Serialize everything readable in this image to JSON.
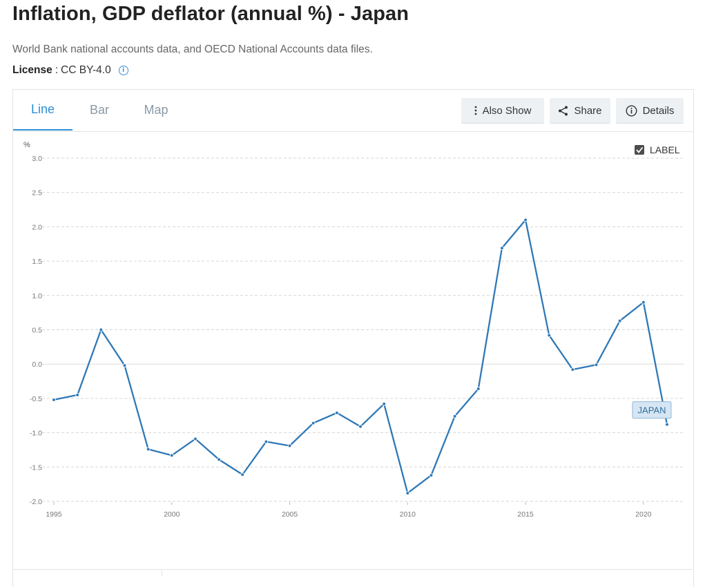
{
  "page": {
    "title": "Inflation, GDP deflator (annual %) - Japan",
    "source": "World Bank national accounts data, and OECD National Accounts data files.",
    "license_label": "License",
    "license_sep": ":",
    "license_value": "CC BY-4.0"
  },
  "tabs": [
    {
      "label": "Line",
      "active": true
    },
    {
      "label": "Bar",
      "active": false
    },
    {
      "label": "Map",
      "active": false
    }
  ],
  "toolbar": {
    "also_show": "Also Show",
    "share": "Share",
    "details": "Details"
  },
  "label_toggle": {
    "text": "LABEL",
    "checked": true
  },
  "colors": {
    "line": "#2f78b6",
    "accent": "#2b8fd6",
    "series_label_bg": "#d6e6f3"
  },
  "chart_data": {
    "type": "line",
    "title": "",
    "xlabel": "",
    "ylabel": "%",
    "ylim": [
      -2.0,
      3.0
    ],
    "yticks": [
      "3.0",
      "2.5",
      "2.0",
      "1.5",
      "1.0",
      "0.5",
      "0.0",
      "-0.5",
      "-1.0",
      "-1.5",
      "-2.0"
    ],
    "xticks": [
      "1995",
      "2000",
      "2005",
      "2010",
      "2015",
      "2020"
    ],
    "grid": true,
    "x": [
      1995,
      1996,
      1997,
      1998,
      1999,
      2000,
      2001,
      2002,
      2003,
      2004,
      2005,
      2006,
      2007,
      2008,
      2009,
      2010,
      2011,
      2012,
      2013,
      2014,
      2015,
      2016,
      2017,
      2018,
      2019,
      2020,
      2021
    ],
    "series": [
      {
        "name": "JAPAN",
        "values": [
          -0.52,
          -0.45,
          0.5,
          -0.02,
          -1.24,
          -1.33,
          -1.09,
          -1.39,
          -1.61,
          -1.13,
          -1.19,
          -0.86,
          -0.71,
          -0.91,
          -0.58,
          -1.88,
          -1.62,
          -0.76,
          -0.36,
          1.69,
          2.1,
          0.42,
          -0.08,
          -0.01,
          0.63,
          0.9,
          -0.88
        ]
      }
    ]
  }
}
